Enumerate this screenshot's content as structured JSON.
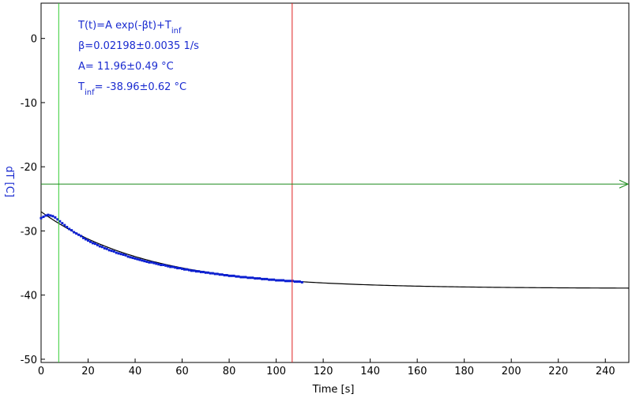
{
  "chart_data": {
    "type": "scatter",
    "title": "",
    "xlabel": "Time [s]",
    "ylabel": "dT [C]",
    "xlim": [
      0,
      250
    ],
    "ylim": [
      -50.5,
      5.5
    ],
    "x_ticks": [
      0,
      20,
      40,
      60,
      80,
      100,
      120,
      140,
      160,
      180,
      200,
      220,
      240
    ],
    "y_ticks": [
      0,
      -10,
      -20,
      -30,
      -40,
      -50
    ],
    "grid": false,
    "legend": "none",
    "annotations": [
      {
        "text": "T(t)=A exp(-βt)+T",
        "sub": "inf"
      },
      {
        "text": "β=0.02198±0.0035 1/s"
      },
      {
        "text": "A= 11.96±0.49 °C"
      },
      {
        "text": "T",
        "sub": "inf",
        "tail": "= -38.96±0.62 °C"
      }
    ],
    "fit": {
      "A": 11.96,
      "beta": 0.02198,
      "T_inf": -38.96,
      "x_range": [
        0,
        250
      ],
      "color": "#000000"
    },
    "series": [
      {
        "color": "#0a1ed2",
        "x": [
          0,
          1,
          2,
          3,
          4,
          5,
          6,
          7,
          8,
          9,
          10,
          11,
          12,
          13,
          14,
          15,
          16,
          17,
          18,
          19,
          20,
          21,
          22,
          23,
          24,
          25,
          26,
          27,
          28,
          29,
          30,
          31,
          32,
          33,
          34,
          35,
          36,
          37,
          38,
          39,
          40,
          41,
          42,
          43,
          44,
          45,
          46,
          47,
          48,
          49,
          50,
          51,
          52,
          53,
          54,
          55,
          56,
          57,
          58,
          59,
          60,
          61,
          62,
          63,
          64,
          65,
          66,
          67,
          68,
          69,
          70,
          71,
          72,
          73,
          74,
          75,
          76,
          77,
          78,
          79,
          80,
          81,
          82,
          83,
          84,
          85,
          86,
          87,
          88,
          89,
          90,
          91,
          92,
          93,
          94,
          95,
          96,
          97,
          98,
          99,
          100,
          101,
          102,
          103,
          104,
          105,
          106,
          107,
          108,
          109,
          110,
          111
        ],
        "y": [
          -28.0,
          -27.8,
          -27.6,
          -27.5,
          -27.6,
          -27.7,
          -27.9,
          -28.2,
          -28.5,
          -28.8,
          -29.1,
          -29.4,
          -29.7,
          -29.9,
          -30.2,
          -30.4,
          -30.6,
          -30.8,
          -31.1,
          -31.3,
          -31.5,
          -31.7,
          -31.9,
          -32.0,
          -32.2,
          -32.4,
          -32.5,
          -32.7,
          -32.8,
          -33.0,
          -33.1,
          -33.2,
          -33.4,
          -33.5,
          -33.6,
          -33.7,
          -33.8,
          -34.0,
          -34.1,
          -34.2,
          -34.3,
          -34.4,
          -34.5,
          -34.6,
          -34.7,
          -34.8,
          -34.9,
          -34.9,
          -35.0,
          -35.1,
          -35.2,
          -35.3,
          -35.3,
          -35.4,
          -35.5,
          -35.6,
          -35.6,
          -35.7,
          -35.8,
          -35.8,
          -35.9,
          -36.0,
          -36.0,
          -36.1,
          -36.2,
          -36.2,
          -36.3,
          -36.3,
          -36.4,
          -36.4,
          -36.5,
          -36.5,
          -36.6,
          -36.6,
          -36.7,
          -36.7,
          -36.8,
          -36.8,
          -36.9,
          -36.9,
          -37.0,
          -37.0,
          -37.0,
          -37.1,
          -37.1,
          -37.2,
          -37.2,
          -37.2,
          -37.3,
          -37.3,
          -37.3,
          -37.4,
          -37.4,
          -37.4,
          -37.5,
          -37.5,
          -37.5,
          -37.6,
          -37.6,
          -37.6,
          -37.7,
          -37.7,
          -37.7,
          -37.7,
          -37.8,
          -37.8,
          -37.8,
          -37.8,
          -37.9,
          -37.9,
          -37.9,
          -38.0
        ]
      }
    ],
    "markers": {
      "green_vline_x": 7.5,
      "red_vline_x": 106.8,
      "hline_y": -22.7
    }
  }
}
